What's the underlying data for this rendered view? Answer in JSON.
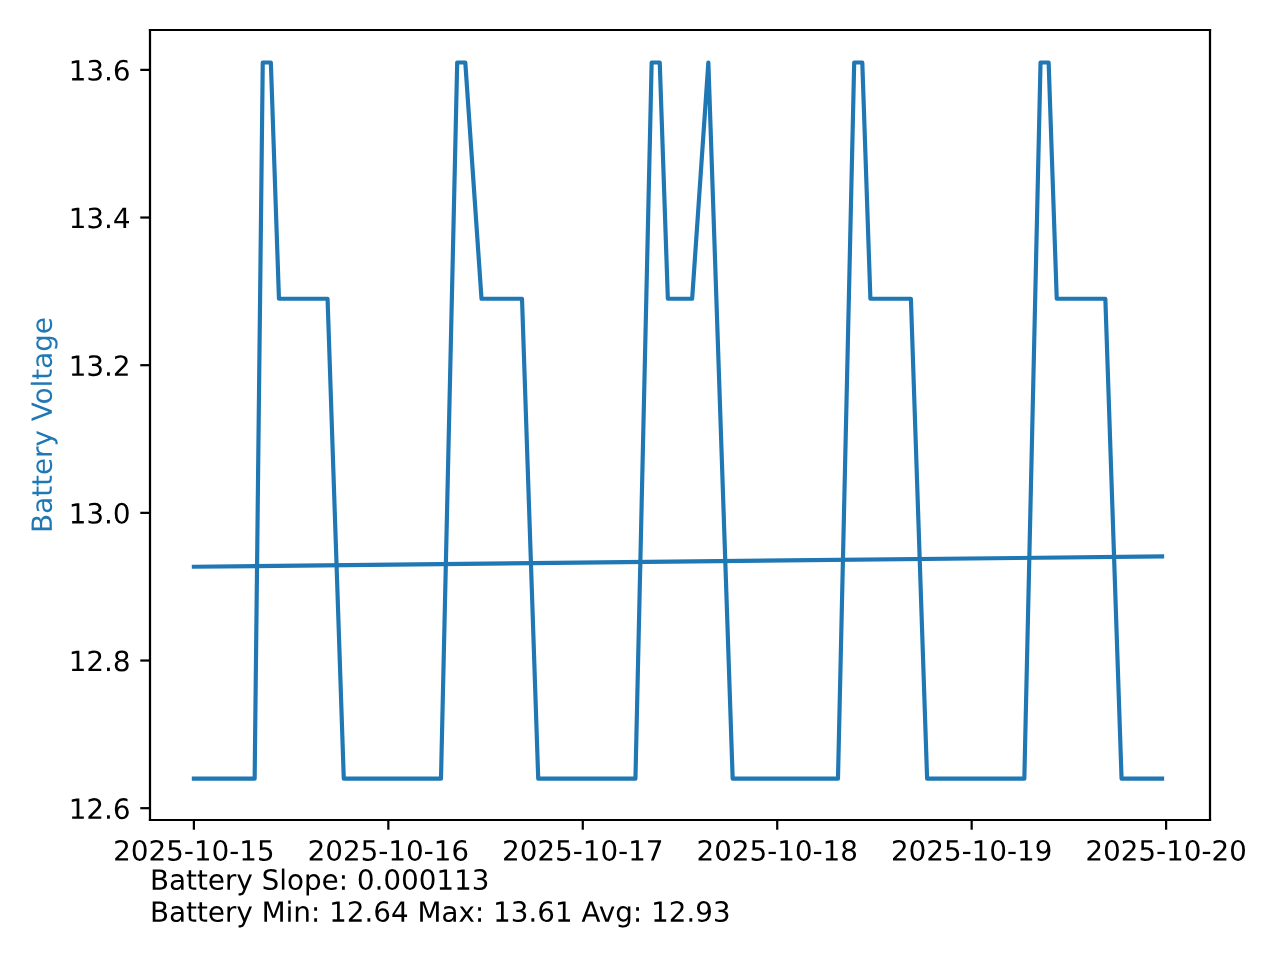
{
  "chart_data": {
    "type": "line",
    "ylabel": "Battery Voltage",
    "xlim": [
      "2025-10-14T18:35",
      "2025-10-20T05:25"
    ],
    "ylim": [
      12.584,
      13.654
    ],
    "xticks": [
      "2025-10-15",
      "2025-10-16",
      "2025-10-17",
      "2025-10-18",
      "2025-10-19",
      "2025-10-20"
    ],
    "yticks": [
      12.6,
      12.8,
      {
        "value": 13.0,
        "label": "13.0"
      },
      13.2,
      13.4,
      13.6
    ],
    "grid": false,
    "marker": "none",
    "line_style": "solid",
    "series": [
      {
        "color": "#1f77b4",
        "x": [
          "2025-10-15T00:00",
          "2025-10-15T07:30",
          "2025-10-15T08:30",
          "2025-10-15T09:30",
          "2025-10-15T10:30",
          "2025-10-15T16:30",
          "2025-10-15T18:30",
          "2025-10-16T06:30",
          "2025-10-16T08:30",
          "2025-10-16T09:30",
          "2025-10-16T11:30",
          "2025-10-16T16:30",
          "2025-10-16T18:30",
          "2025-10-17T06:30",
          "2025-10-17T08:30",
          "2025-10-17T09:30",
          "2025-10-17T10:30",
          "2025-10-17T13:30",
          "2025-10-17T15:30",
          "2025-10-17T18:30",
          "2025-10-18T07:30",
          "2025-10-18T09:30",
          "2025-10-18T10:30",
          "2025-10-18T11:30",
          "2025-10-18T16:30",
          "2025-10-18T18:30",
          "2025-10-19T06:30",
          "2025-10-19T08:30",
          "2025-10-19T09:30",
          "2025-10-19T10:30",
          "2025-10-19T16:30",
          "2025-10-19T18:30",
          "2025-10-19T23:30"
        ],
        "values": [
          12.64,
          12.64,
          13.61,
          13.61,
          13.29,
          13.29,
          12.64,
          12.64,
          13.61,
          13.61,
          13.29,
          13.29,
          12.64,
          12.64,
          13.61,
          13.61,
          13.29,
          13.29,
          13.61,
          12.64,
          12.64,
          13.61,
          13.61,
          13.29,
          13.29,
          12.64,
          12.64,
          13.61,
          13.61,
          13.29,
          13.29,
          12.64,
          12.64
        ]
      },
      {
        "color": "#1f77b4",
        "x": [
          "2025-10-15T00:00",
          "2025-10-19T23:30"
        ],
        "values": [
          12.927,
          12.941
        ]
      }
    ],
    "annotations": [
      "Battery Slope: 0.000113",
      "Battery Min: 12.64 Max: 13.61 Avg: 12.93"
    ]
  }
}
